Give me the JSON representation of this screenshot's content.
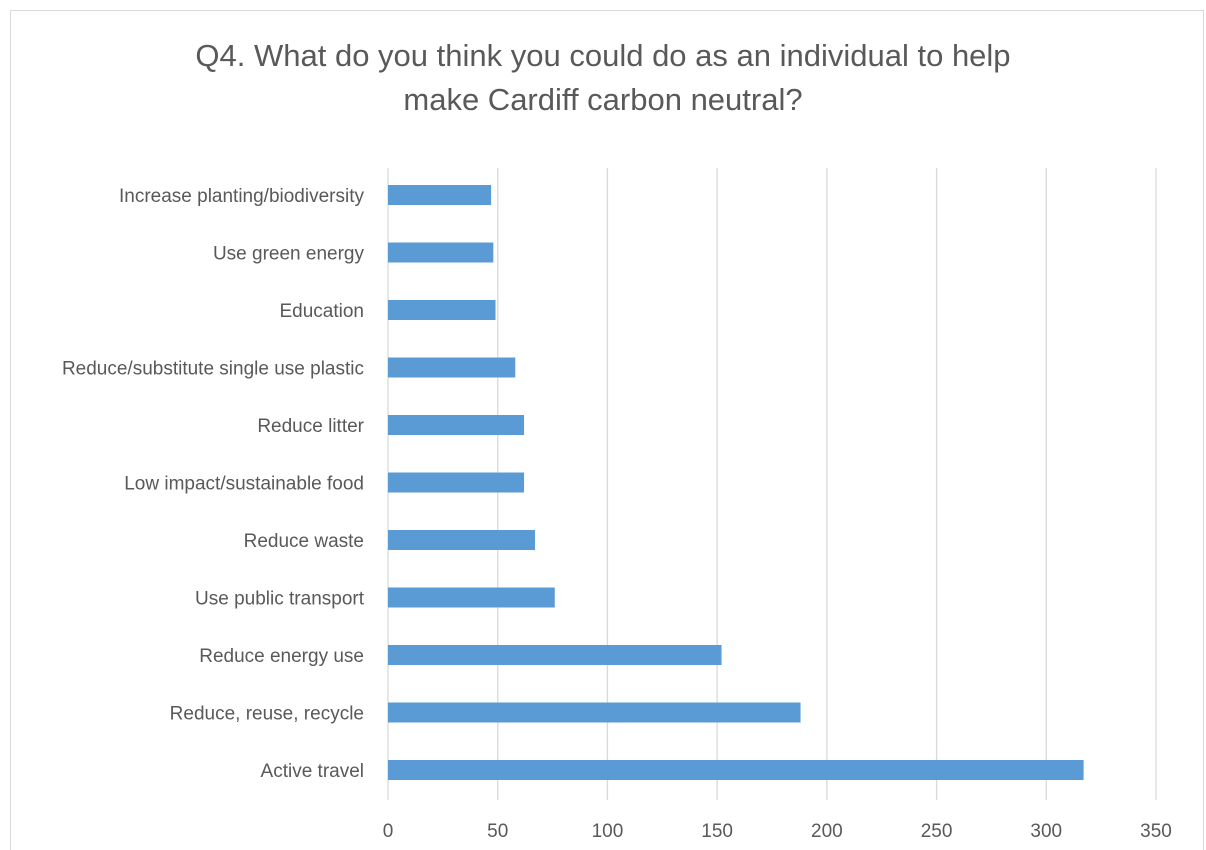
{
  "chart_data": {
    "type": "bar",
    "orientation": "horizontal",
    "title_lines": [
      "Q4. What do you think you could do as an individual to help",
      "make Cardiff carbon neutral?"
    ],
    "categories": [
      "Active travel",
      "Reduce, reuse, recycle",
      "Reduce energy use",
      "Use public transport",
      "Reduce waste",
      "Low impact/sustainable food",
      "Reduce litter",
      "Reduce/substitute single use plastic",
      "Education",
      "Use green energy",
      "Increase planting/biodiversity"
    ],
    "values": [
      317,
      188,
      152,
      76,
      67,
      62,
      62,
      58,
      49,
      48,
      47
    ],
    "xlim": [
      0,
      350
    ],
    "xticks": [
      0,
      50,
      100,
      150,
      200,
      250,
      300,
      350
    ],
    "xtick_labels": [
      "0",
      "50",
      "100",
      "150",
      "200",
      "250",
      "300",
      "350"
    ],
    "grid": "vertical",
    "bar_color": "#5b9bd5",
    "grid_color": "#d9d9d9"
  }
}
